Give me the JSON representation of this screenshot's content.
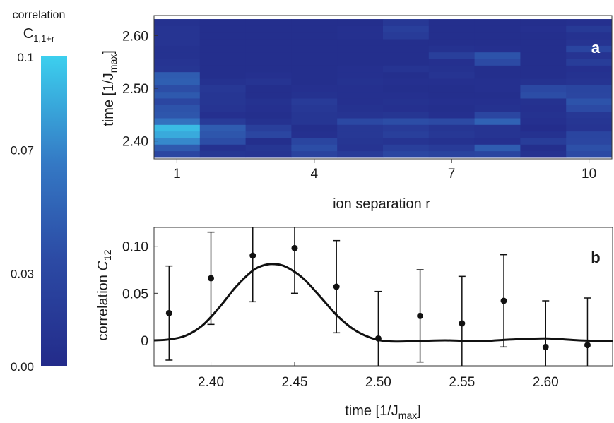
{
  "colorbar": {
    "title_line1": "correlation",
    "title_sym": "C",
    "title_sub": "1,1+r",
    "ticks": [
      {
        "label": "0.1",
        "value": 0.1
      },
      {
        "label": "0.07",
        "value": 0.07
      },
      {
        "label": "0.03",
        "value": 0.03
      },
      {
        "label": "0.00",
        "value": 0.0
      }
    ],
    "color_low": "#232b8a",
    "color_high": "#3ccfee"
  },
  "chart_data": [
    {
      "type": "heatmap",
      "panel_label": "a",
      "xlabel": "ion separation r",
      "ylabel": "time  [1/J",
      "ylabel_sub": "max",
      "ylabel_end": "]",
      "x_categories": [
        1,
        2,
        3,
        4,
        5,
        6,
        7,
        8,
        9,
        10
      ],
      "x_tick_labels": [
        {
          "value": 1,
          "label": "1"
        },
        {
          "value": 4,
          "label": "4"
        },
        {
          "value": 7,
          "label": "7"
        },
        {
          "value": 10,
          "label": "10"
        }
      ],
      "y_times": [
        2.375,
        2.3875,
        2.4,
        2.4125,
        2.425,
        2.4375,
        2.45,
        2.4625,
        2.475,
        2.4875,
        2.5,
        2.5125,
        2.525,
        2.5375,
        2.55,
        2.5625,
        2.575,
        2.5875,
        2.6,
        2.6125,
        2.625
      ],
      "y_tick_labels": [
        {
          "value": 2.4,
          "label": "2.40"
        },
        {
          "value": 2.5,
          "label": "2.50"
        },
        {
          "value": 2.6,
          "label": "2.60"
        }
      ],
      "ylim": [
        2.366,
        2.638
      ],
      "values": [
        [
          0.03,
          0.012,
          0.01,
          0.026,
          0.018,
          0.03,
          0.026,
          0.028,
          0.008,
          0.034
        ],
        [
          0.045,
          0.008,
          0.012,
          0.036,
          0.01,
          0.022,
          0.018,
          0.046,
          0.004,
          0.038
        ],
        [
          0.072,
          0.036,
          0.004,
          0.028,
          0.012,
          0.01,
          0.008,
          0.006,
          0.02,
          0.03
        ],
        [
          0.085,
          0.042,
          0.03,
          0.006,
          0.014,
          0.022,
          0.014,
          0.01,
          0.008,
          0.028
        ],
        [
          0.092,
          0.046,
          0.022,
          0.004,
          0.014,
          0.018,
          0.012,
          0.01,
          0.002,
          0.01
        ],
        [
          0.06,
          0.018,
          0.008,
          0.012,
          0.032,
          0.036,
          0.034,
          0.05,
          0.006,
          0.012
        ],
        [
          0.042,
          0.006,
          0.004,
          0.012,
          0.01,
          0.012,
          0.006,
          0.03,
          0.008,
          0.014
        ],
        [
          0.04,
          0.01,
          0.006,
          0.014,
          0.008,
          0.006,
          0.004,
          0.008,
          0.006,
          0.034
        ],
        [
          0.03,
          0.012,
          0.008,
          0.018,
          0.006,
          0.008,
          0.006,
          0.006,
          0.008,
          0.04
        ],
        [
          0.044,
          0.012,
          0.004,
          0.008,
          0.006,
          0.006,
          0.004,
          0.004,
          0.036,
          0.03
        ],
        [
          0.036,
          0.014,
          0.004,
          0.006,
          0.006,
          0.004,
          0.004,
          0.006,
          0.032,
          0.028
        ],
        [
          0.048,
          0.008,
          0.01,
          0.004,
          0.008,
          0.006,
          0.006,
          0.006,
          0.008,
          0.01
        ],
        [
          0.046,
          0.004,
          0.006,
          0.004,
          0.006,
          0.004,
          0.01,
          0.004,
          0.004,
          0.008
        ],
        [
          0.012,
          0.004,
          0.004,
          0.004,
          0.006,
          0.01,
          0.008,
          0.004,
          0.004,
          0.006
        ],
        [
          0.01,
          0.004,
          0.004,
          0.004,
          0.004,
          0.004,
          0.006,
          0.034,
          0.004,
          0.02
        ],
        [
          0.008,
          0.004,
          0.004,
          0.004,
          0.004,
          0.004,
          0.022,
          0.04,
          0.004,
          0.01
        ],
        [
          0.008,
          0.004,
          0.004,
          0.004,
          0.004,
          0.004,
          0.008,
          0.006,
          0.004,
          0.028
        ],
        [
          0.01,
          0.004,
          0.004,
          0.004,
          0.004,
          0.004,
          0.004,
          0.004,
          0.004,
          0.01
        ],
        [
          0.01,
          0.004,
          0.004,
          0.004,
          0.006,
          0.018,
          0.004,
          0.004,
          0.004,
          0.008
        ],
        [
          0.01,
          0.004,
          0.004,
          0.004,
          0.006,
          0.022,
          0.004,
          0.004,
          0.006,
          0.016
        ],
        [
          0.008,
          0.004,
          0.004,
          0.004,
          0.004,
          0.014,
          0.004,
          0.004,
          0.004,
          0.006
        ]
      ]
    },
    {
      "type": "scatter",
      "panel_label": "b",
      "xlabel": "time [1/J",
      "xlabel_sub": "max",
      "xlabel_end": "]",
      "ylabel": "correlation ",
      "ylabel_sym": "C",
      "ylabel_sub": "12",
      "xlim": [
        2.366,
        2.64
      ],
      "ylim": [
        -0.027,
        0.12
      ],
      "x_tick_labels": [
        {
          "value": 2.4,
          "label": "2.40"
        },
        {
          "value": 2.45,
          "label": "2.45"
        },
        {
          "value": 2.5,
          "label": "2.50"
        },
        {
          "value": 2.55,
          "label": "2.55"
        },
        {
          "value": 2.6,
          "label": "2.60"
        }
      ],
      "y_tick_labels": [
        {
          "value": 0,
          "label": "0"
        },
        {
          "value": 0.05,
          "label": "0.05"
        },
        {
          "value": 0.1,
          "label": "0.10"
        }
      ],
      "points": [
        {
          "x": 2.375,
          "y": 0.029,
          "err": 0.05
        },
        {
          "x": 2.4,
          "y": 0.066,
          "err": 0.049
        },
        {
          "x": 2.425,
          "y": 0.09,
          "err": 0.049
        },
        {
          "x": 2.45,
          "y": 0.098,
          "err": 0.048
        },
        {
          "x": 2.475,
          "y": 0.057,
          "err": 0.049
        },
        {
          "x": 2.5,
          "y": 0.002,
          "err": 0.05
        },
        {
          "x": 2.525,
          "y": 0.026,
          "err": 0.049
        },
        {
          "x": 2.55,
          "y": 0.018,
          "err": 0.05
        },
        {
          "x": 2.575,
          "y": 0.042,
          "err": 0.049
        },
        {
          "x": 2.6,
          "y": -0.007,
          "err": 0.049
        },
        {
          "x": 2.625,
          "y": -0.005,
          "err": 0.05
        }
      ],
      "curve": [
        {
          "x": 2.366,
          "y": 0.0
        },
        {
          "x": 2.375,
          "y": 0.001
        },
        {
          "x": 2.385,
          "y": 0.005
        },
        {
          "x": 2.395,
          "y": 0.016
        },
        {
          "x": 2.405,
          "y": 0.035
        },
        {
          "x": 2.415,
          "y": 0.057
        },
        {
          "x": 2.425,
          "y": 0.074
        },
        {
          "x": 2.432,
          "y": 0.08
        },
        {
          "x": 2.438,
          "y": 0.081
        },
        {
          "x": 2.445,
          "y": 0.078
        },
        {
          "x": 2.455,
          "y": 0.066
        },
        {
          "x": 2.465,
          "y": 0.047
        },
        {
          "x": 2.475,
          "y": 0.027
        },
        {
          "x": 2.485,
          "y": 0.012
        },
        {
          "x": 2.495,
          "y": 0.003
        },
        {
          "x": 2.505,
          "y": -0.001
        },
        {
          "x": 2.52,
          "y": -0.001
        },
        {
          "x": 2.54,
          "y": 0.0
        },
        {
          "x": 2.56,
          "y": -0.001
        },
        {
          "x": 2.58,
          "y": 0.001
        },
        {
          "x": 2.6,
          "y": 0.002
        },
        {
          "x": 2.62,
          "y": 0.0
        },
        {
          "x": 2.64,
          "y": -0.001
        }
      ]
    }
  ]
}
